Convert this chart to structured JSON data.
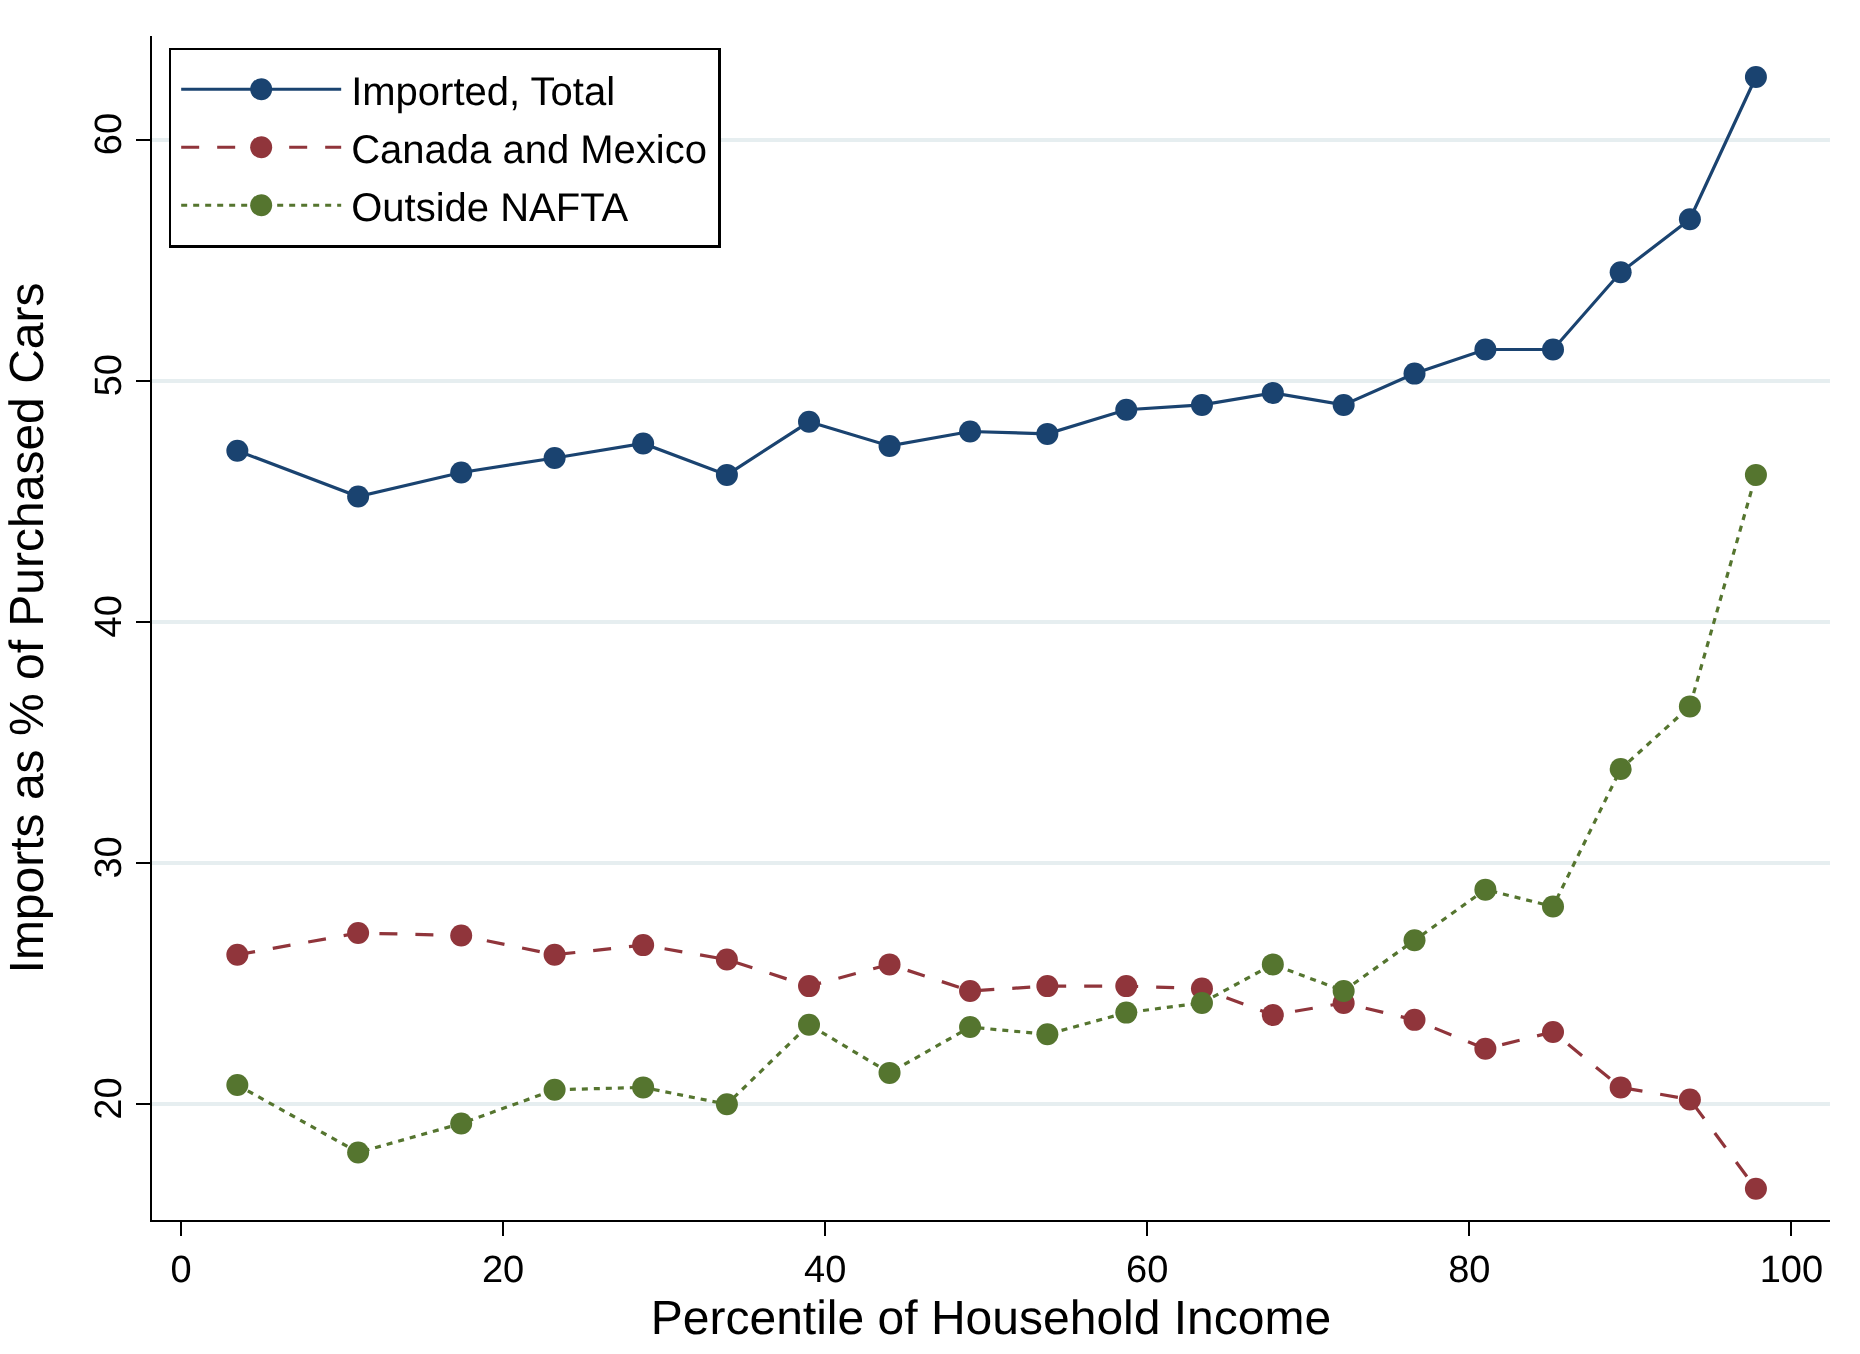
{
  "chart_data": {
    "type": "line",
    "xlabel": "Percentile of Household Income",
    "ylabel": "Imports as % of Purchased Cars",
    "x": [
      3.5,
      11.0,
      17.4,
      23.2,
      28.7,
      33.9,
      39.0,
      44.0,
      49.0,
      53.8,
      58.7,
      63.4,
      67.8,
      72.2,
      76.6,
      81.0,
      85.2,
      89.4,
      93.7,
      97.8
    ],
    "series": [
      {
        "name": "Imported, Total",
        "color": "#1a4370",
        "line_style": "solid",
        "values": [
          47.1,
          45.2,
          46.2,
          46.8,
          47.4,
          46.1,
          48.3,
          47.3,
          47.9,
          47.8,
          48.8,
          49.0,
          49.5,
          49.0,
          50.3,
          51.3,
          51.3,
          54.5,
          56.7,
          62.6
        ]
      },
      {
        "name": "Canada and Mexico",
        "color": "#90353b",
        "line_style": "dashed",
        "values": [
          26.2,
          27.1,
          27.0,
          26.2,
          26.6,
          26.0,
          24.9,
          25.8,
          24.7,
          24.9,
          24.9,
          24.8,
          23.7,
          24.2,
          23.5,
          22.3,
          23.0,
          20.7,
          20.2,
          16.5
        ]
      },
      {
        "name": "Outside NAFTA",
        "color": "#55752f",
        "line_style": "dotted",
        "values": [
          20.8,
          18.0,
          19.2,
          20.6,
          20.7,
          20.0,
          23.3,
          21.3,
          23.2,
          22.9,
          23.8,
          24.2,
          25.8,
          24.7,
          26.8,
          28.9,
          28.2,
          33.9,
          36.5,
          46.1
        ]
      }
    ],
    "xlim": [
      -1.8,
      102.4
    ],
    "ylim": [
      15.2,
      64.3
    ],
    "xticks": [
      0,
      20,
      40,
      60,
      80,
      100
    ],
    "yticks": [
      20,
      30,
      40,
      50,
      60
    ],
    "grid": "y",
    "legend": "top left",
    "marker": "circle"
  }
}
